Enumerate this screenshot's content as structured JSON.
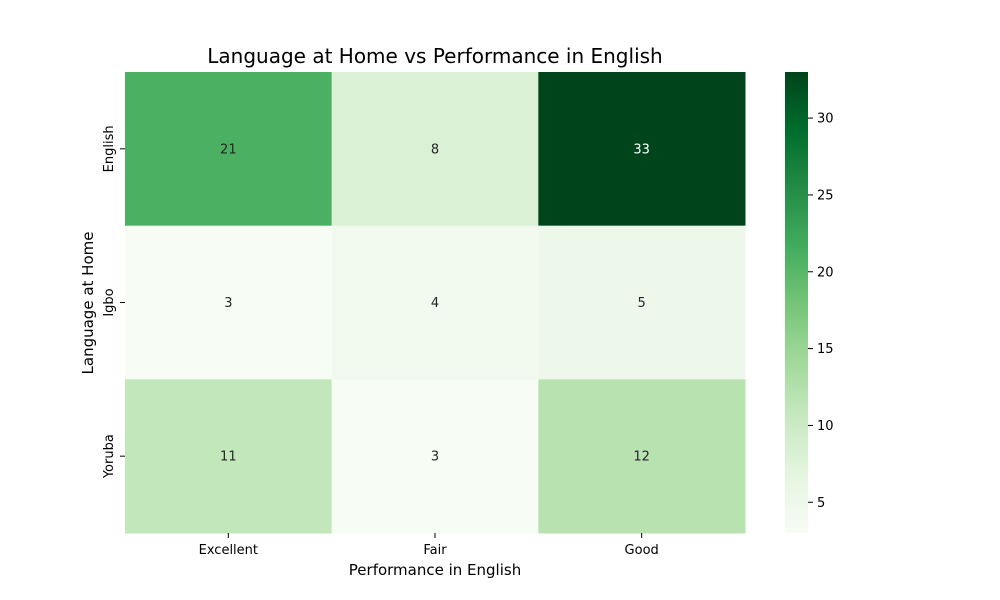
{
  "chart_data": {
    "type": "heatmap",
    "title": "Language at Home vs Performance in English",
    "xlabel": "Performance in English",
    "ylabel": "Language at Home",
    "x_categories": [
      "Excellent",
      "Fair",
      "Good"
    ],
    "y_categories": [
      "English",
      "Igbo",
      "Yoruba"
    ],
    "values": [
      [
        21,
        8,
        33
      ],
      [
        3,
        4,
        5
      ],
      [
        11,
        3,
        12
      ]
    ],
    "colormap": "Greens",
    "value_range": [
      3,
      33
    ],
    "colorbar_ticks": [
      5,
      10,
      15,
      20,
      25,
      30
    ],
    "annotate": true
  }
}
